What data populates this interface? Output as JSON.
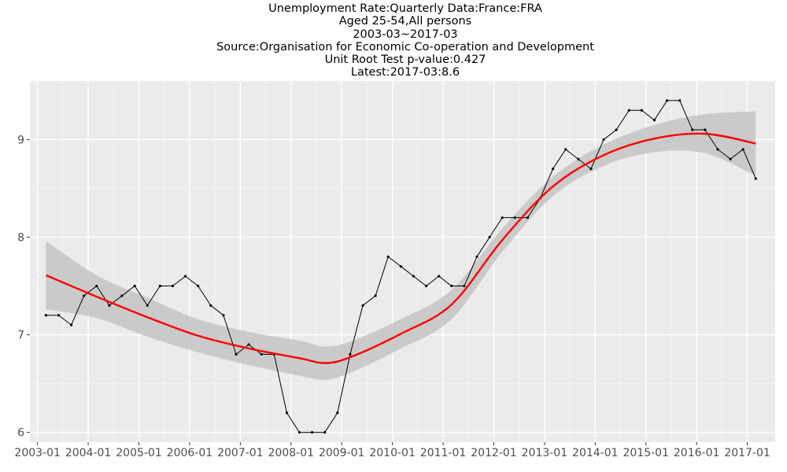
{
  "chart_data": {
    "type": "line",
    "title_lines": [
      "Unemployment Rate:Quarterly Data:France:FRA",
      "Aged 25-54,All persons",
      "2003-03~2017-03",
      "Source:Organisation for Economic Co-operation and Development",
      "Unit Root Test p-value:0.427",
      "Latest:2017-03:8.6"
    ],
    "xlabel": "",
    "ylabel": "",
    "x_ticks": [
      "2003-01",
      "2004-01",
      "2005-01",
      "2006-01",
      "2007-01",
      "2008-01",
      "2009-01",
      "2010-01",
      "2011-01",
      "2012-01",
      "2013-01",
      "2014-01",
      "2015-01",
      "2016-01",
      "2017-01"
    ],
    "y_ticks": [
      6,
      7,
      8,
      9
    ],
    "ylim": [
      5.9,
      9.6
    ],
    "xlim_years": [
      2002.85,
      2017.55
    ],
    "grid": true,
    "background": "#ebebeb",
    "series": [
      {
        "style": "black line with points",
        "color": "#000000",
        "start": "2003-03",
        "frequency": "quarterly",
        "values": [
          7.2,
          7.2,
          7.1,
          7.4,
          7.5,
          7.3,
          7.4,
          7.5,
          7.3,
          7.5,
          7.5,
          7.6,
          7.5,
          7.3,
          7.2,
          6.8,
          6.9,
          6.8,
          6.8,
          6.2,
          6.0,
          6.0,
          6.0,
          6.2,
          6.8,
          7.3,
          7.4,
          7.8,
          7.7,
          7.6,
          7.5,
          7.6,
          7.5,
          7.5,
          7.8,
          8.0,
          8.2,
          8.2,
          8.2,
          8.4,
          8.7,
          8.9,
          8.8,
          8.7,
          9.0,
          9.1,
          9.3,
          9.3,
          9.2,
          9.4,
          9.4,
          9.1,
          9.1,
          8.9,
          8.8,
          8.9,
          8.6
        ]
      },
      {
        "style": "smoothed trend (loess) with confidence band",
        "color": "#ff0000",
        "band_color": "#c8c8c8",
        "x": [
          "2003-03",
          "2004-03",
          "2005-03",
          "2006-03",
          "2007-03",
          "2008-03",
          "2008-09",
          "2009-03",
          "2010-03",
          "2011-03",
          "2012-03",
          "2013-03",
          "2014-03",
          "2015-03",
          "2016-03",
          "2017-03"
        ],
        "fit": [
          7.61,
          7.39,
          7.18,
          6.99,
          6.86,
          6.76,
          6.71,
          6.77,
          7.01,
          7.31,
          7.97,
          8.52,
          8.84,
          9.01,
          9.06,
          8.96
        ],
        "lower": [
          7.26,
          7.17,
          6.98,
          6.82,
          6.69,
          6.58,
          6.54,
          6.61,
          6.86,
          7.16,
          7.85,
          8.42,
          8.73,
          8.87,
          8.86,
          8.63
        ],
        "upper": [
          7.96,
          7.61,
          7.38,
          7.16,
          7.03,
          6.94,
          6.88,
          6.93,
          7.16,
          7.46,
          8.09,
          8.62,
          8.95,
          9.15,
          9.26,
          9.29
        ]
      }
    ]
  }
}
